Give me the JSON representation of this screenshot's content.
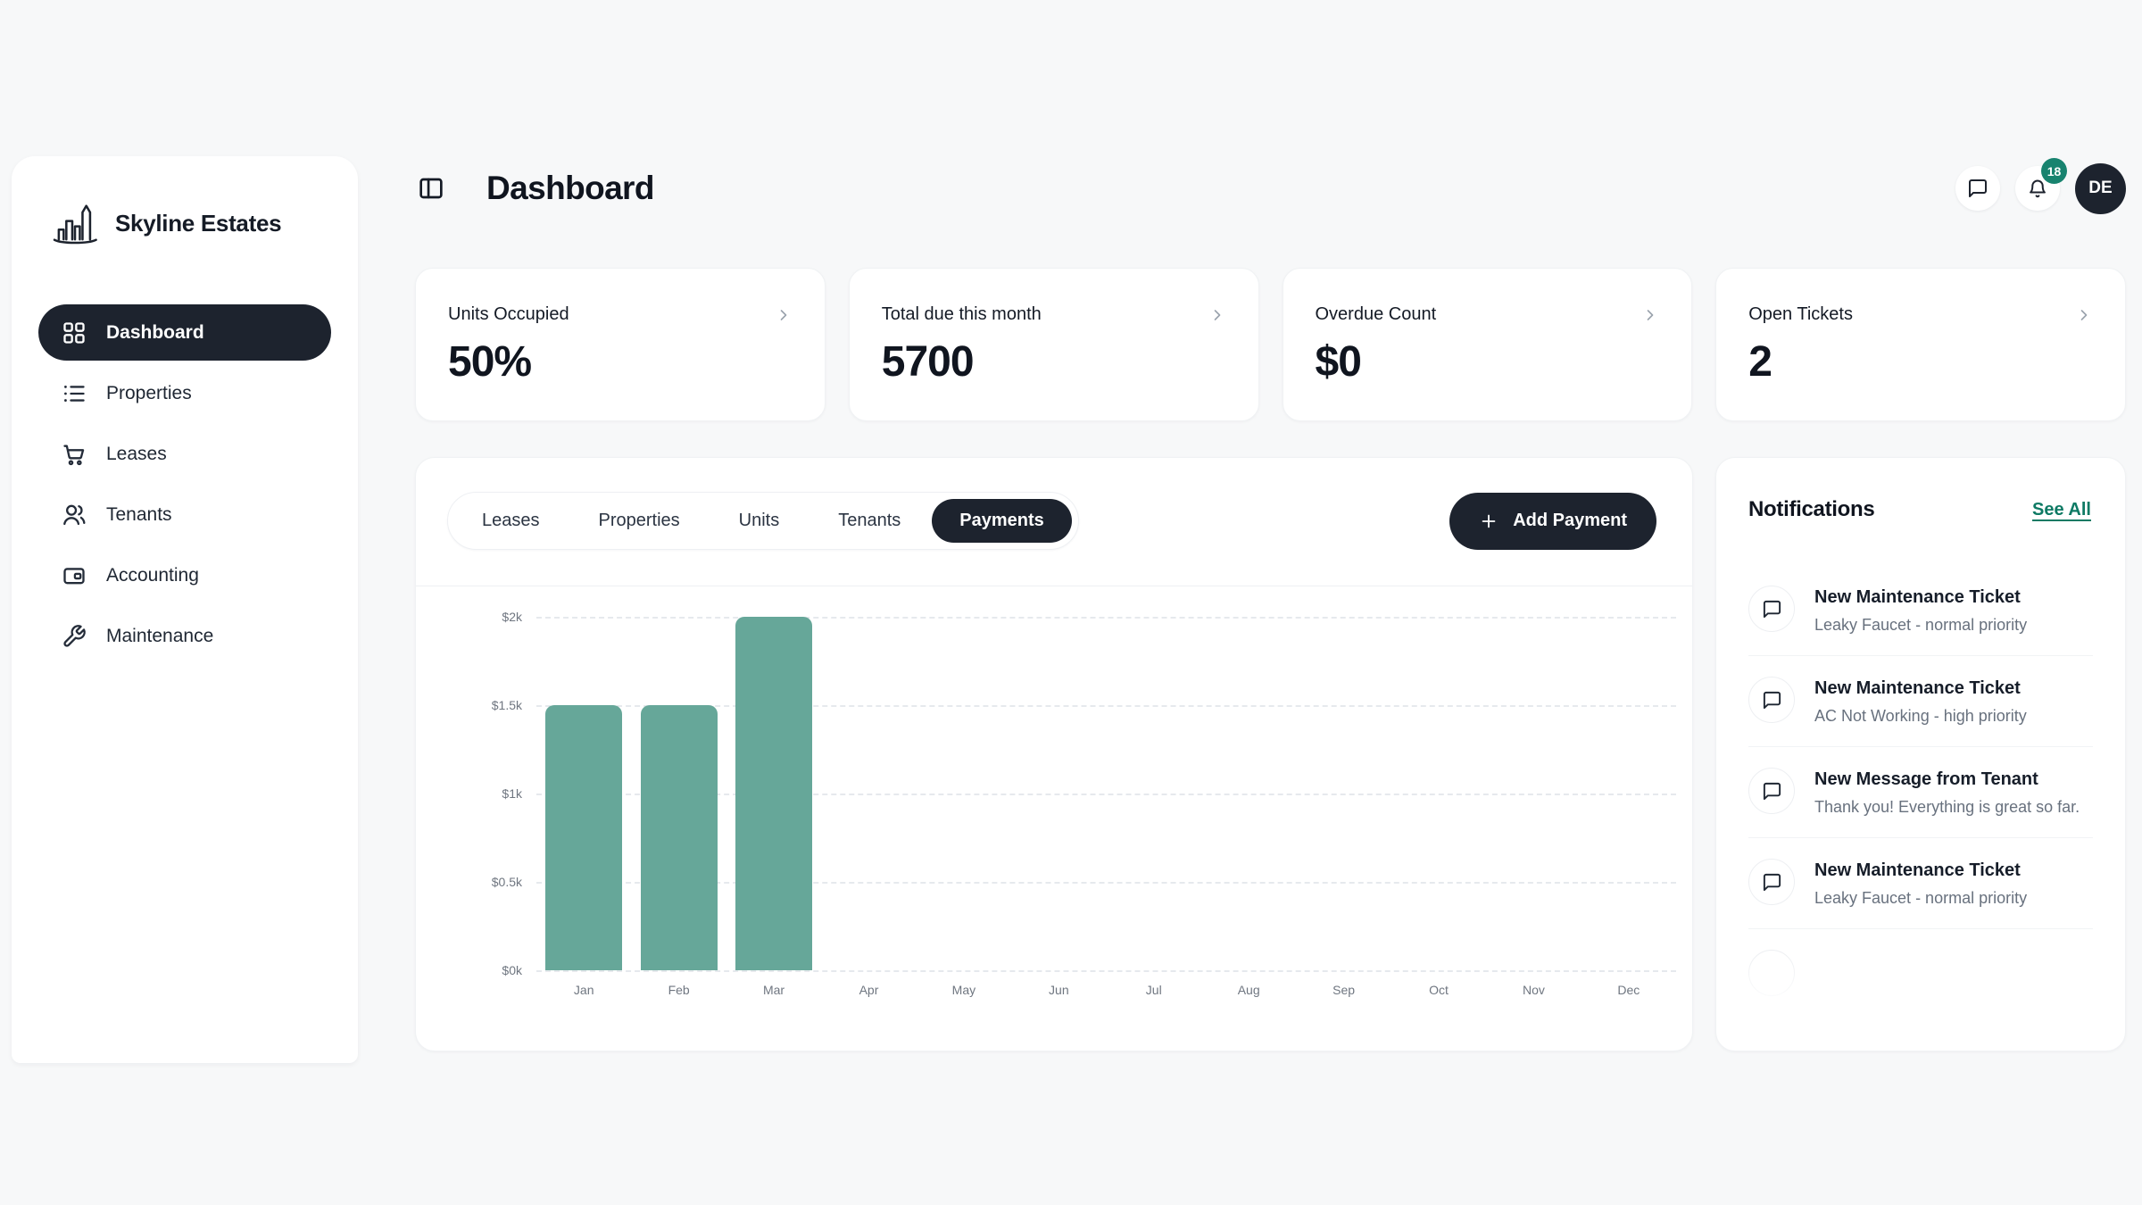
{
  "app": {
    "brand": "Skyline Estates",
    "logo_icon": "skyline-icon"
  },
  "sidebar": {
    "items": [
      {
        "label": "Dashboard",
        "icon": "grid-icon",
        "active": true
      },
      {
        "label": "Properties",
        "icon": "list-icon",
        "active": false
      },
      {
        "label": "Leases",
        "icon": "cart-icon",
        "active": false
      },
      {
        "label": "Tenants",
        "icon": "users-icon",
        "active": false
      },
      {
        "label": "Accounting",
        "icon": "wallet-icon",
        "active": false
      },
      {
        "label": "Maintenance",
        "icon": "wrench-icon",
        "active": false
      }
    ]
  },
  "header": {
    "title": "Dashboard",
    "toggle_icon": "panel-left-icon",
    "actions": {
      "chat_icon": "chat-icon",
      "bell_icon": "bell-icon",
      "badge_count": "18",
      "avatar_initials": "DE"
    }
  },
  "stats": [
    {
      "label": "Units Occupied",
      "value": "50%",
      "chevron_icon": "chevron-right-icon"
    },
    {
      "label": "Total due this month",
      "value": "5700",
      "chevron_icon": "chevron-right-icon"
    },
    {
      "label": "Overdue Count",
      "value": "$0",
      "chevron_icon": "chevron-right-icon"
    },
    {
      "label": "Open Tickets",
      "value": "2",
      "chevron_icon": "chevron-right-icon"
    }
  ],
  "content_tabs": {
    "tabs": [
      {
        "label": "Leases",
        "active": false
      },
      {
        "label": "Properties",
        "active": false
      },
      {
        "label": "Units",
        "active": false
      },
      {
        "label": "Tenants",
        "active": false
      },
      {
        "label": "Payments",
        "active": true
      }
    ],
    "add_button": {
      "label": "Add Payment",
      "icon": "plus-icon"
    }
  },
  "chart_data": {
    "type": "bar",
    "title": "",
    "xlabel": "",
    "ylabel": "",
    "categories": [
      "Jan",
      "Feb",
      "Mar",
      "Apr",
      "May",
      "Jun",
      "Jul",
      "Aug",
      "Sep",
      "Oct",
      "Nov",
      "Dec"
    ],
    "values": [
      1500,
      1500,
      2000,
      0,
      0,
      0,
      0,
      0,
      0,
      0,
      0,
      0
    ],
    "y_ticks": [
      "$2k",
      "$1.5k",
      "$1k",
      "$0.5k",
      "$0k"
    ],
    "ylim": [
      0,
      2000
    ],
    "grid": "dashed-horizontal",
    "legend": "none",
    "bar_color": "#66a799"
  },
  "notifications": {
    "title": "Notifications",
    "see_all_label": "See All",
    "item_icon": "chat-icon",
    "items": [
      {
        "title": "New Maintenance Ticket",
        "subtitle": "Leaky Faucet - normal priority"
      },
      {
        "title": "New Maintenance Ticket",
        "subtitle": "AC Not Working - high priority"
      },
      {
        "title": "New Message from Tenant",
        "subtitle": "Thank you! Everything is great so far."
      },
      {
        "title": "New Maintenance Ticket",
        "subtitle": "Leaky Faucet - normal priority"
      }
    ],
    "partial_fifth_item": true
  },
  "colors": {
    "accent_dark": "#1d232e",
    "teal": "#66a799",
    "badge": "#18836f",
    "link": "#0e7a64",
    "page_bg": "#f7f8f9"
  }
}
